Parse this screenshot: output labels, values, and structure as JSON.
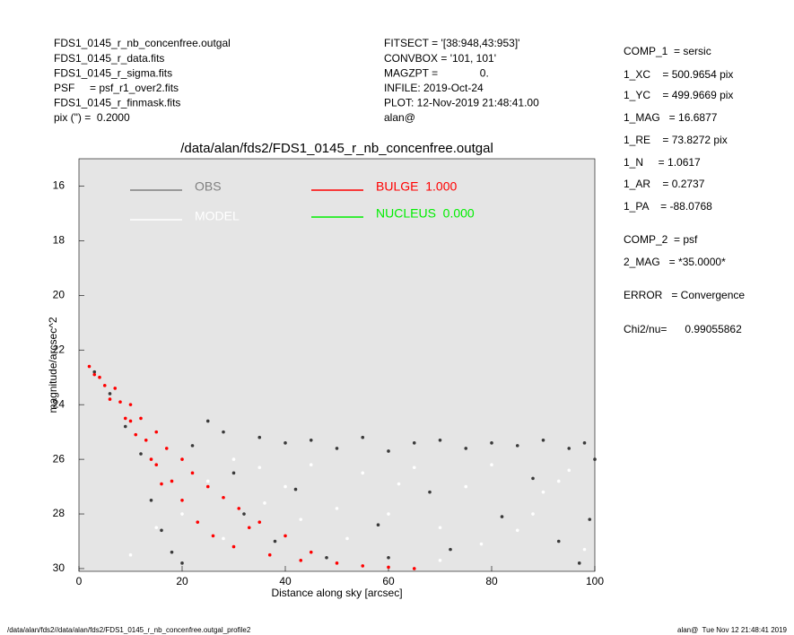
{
  "header": {
    "left": [
      "FDS1_0145_r_nb_concenfree.outgal",
      "FDS1_0145_r_data.fits",
      "FDS1_0145_r_sigma.fits",
      "PSF     = psf_r1_over2.fits",
      "FDS1_0145_r_finmask.fits",
      "pix (\") =  0.2000"
    ],
    "middle": [
      "FITSECT = '[38:948,43:953]'",
      "CONVBOX = '101, 101'",
      "MAGZPT =              0.",
      "INFILE: 2019-Oct-24",
      "PLOT: 12-Nov-2019 21:48:41.00",
      "alan@"
    ],
    "right": [
      "COMP_1  = sersic",
      "1_XC    = 500.9654 pix",
      "1_YC    = 499.9669 pix",
      "1_MAG   = 16.6877",
      "1_RE    = 73.8272 pix",
      "1_N     = 1.0617",
      "1_AR    = 0.2737",
      "1_PA    = -88.0768",
      "COMP_2  = psf",
      "2_MAG   = *35.0000*",
      "ERROR   = Convergence",
      "Chi2/nu=      0.99055862"
    ]
  },
  "footer": {
    "left": "/data/alan/fds2//data/alan/fds2/FDS1_0145_r_nb_concenfree.outgal_profile2",
    "right": "alan@  Tue Nov 12 21:48:41 2019"
  },
  "chart_data": {
    "type": "scatter",
    "title": "/data/alan/fds2/FDS1_0145_r_nb_concenfree.outgal",
    "x_label": "Distance along sky [arcsec]",
    "y_label": "magnitude/arcsec^2",
    "xlim": [
      0,
      100
    ],
    "xticks": [
      0,
      20,
      40,
      60,
      80,
      100
    ],
    "ylim": [
      30.1,
      15
    ],
    "yticks": [
      16,
      18,
      20,
      22,
      24,
      26,
      28,
      30
    ],
    "plot_background": "#e5e5e5",
    "grid": false,
    "series": [
      {
        "name": "OBS",
        "color": "#808080",
        "point_color": "#3a3a3a",
        "x": [
          3,
          6,
          9,
          12,
          14,
          16,
          18,
          20,
          22,
          25,
          28,
          30,
          32,
          35,
          38,
          40,
          42,
          45,
          48,
          50,
          55,
          58,
          60,
          65,
          68,
          70,
          72,
          75,
          80,
          82,
          85,
          88,
          90,
          93,
          95,
          98,
          99,
          100,
          97,
          60
        ],
        "values": [
          22.8,
          23.6,
          24.8,
          25.8,
          27.5,
          28.6,
          29.4,
          29.8,
          25.5,
          24.6,
          25.0,
          26.5,
          28.0,
          25.2,
          29.0,
          25.4,
          27.1,
          25.3,
          29.6,
          25.6,
          25.2,
          28.4,
          25.7,
          25.4,
          27.2,
          25.3,
          29.3,
          25.6,
          25.4,
          28.1,
          25.5,
          26.7,
          25.3,
          29.0,
          25.6,
          25.4,
          28.2,
          26.0,
          29.8,
          29.6
        ]
      },
      {
        "name": "MODEL",
        "color": "#ffffff",
        "point_color": "#ffffff",
        "x": [
          10,
          15,
          20,
          25,
          30,
          35,
          40,
          45,
          50,
          55,
          60,
          65,
          70,
          75,
          80,
          85,
          90,
          95,
          98,
          70,
          52,
          62,
          78,
          88,
          93,
          43,
          36,
          28
        ],
        "values": [
          29.5,
          28.5,
          28.0,
          26.8,
          26.0,
          26.3,
          27.0,
          26.2,
          27.8,
          26.5,
          28.0,
          26.3,
          28.5,
          27.0,
          26.2,
          28.6,
          27.2,
          26.4,
          29.3,
          29.7,
          28.9,
          26.9,
          29.1,
          28.0,
          26.8,
          28.2,
          27.6,
          28.9
        ]
      },
      {
        "name": "BULGE  1.000",
        "color": "#ff0000",
        "point_color": "#ff0000",
        "x": [
          2,
          4,
          5,
          7,
          8,
          10,
          10,
          12,
          13,
          15,
          15,
          17,
          18,
          20,
          20,
          22,
          23,
          25,
          26,
          28,
          30,
          31,
          33,
          35,
          37,
          40,
          43,
          45,
          50,
          55,
          60,
          65,
          3,
          6,
          9,
          11,
          14,
          16
        ],
        "values": [
          22.6,
          23.0,
          23.3,
          23.4,
          23.9,
          24.0,
          24.6,
          24.5,
          25.3,
          25.0,
          26.2,
          25.6,
          26.8,
          26.0,
          27.5,
          26.5,
          28.3,
          27.0,
          28.8,
          27.4,
          29.2,
          27.8,
          28.5,
          28.3,
          29.5,
          28.8,
          29.7,
          29.4,
          29.8,
          29.9,
          29.95,
          30.0,
          22.9,
          23.8,
          24.5,
          25.1,
          26.0,
          26.9
        ]
      },
      {
        "name": "NUCLEUS  0.000",
        "color": "#00ee00",
        "point_color": "#00ee00",
        "x": [],
        "values": []
      }
    ]
  }
}
